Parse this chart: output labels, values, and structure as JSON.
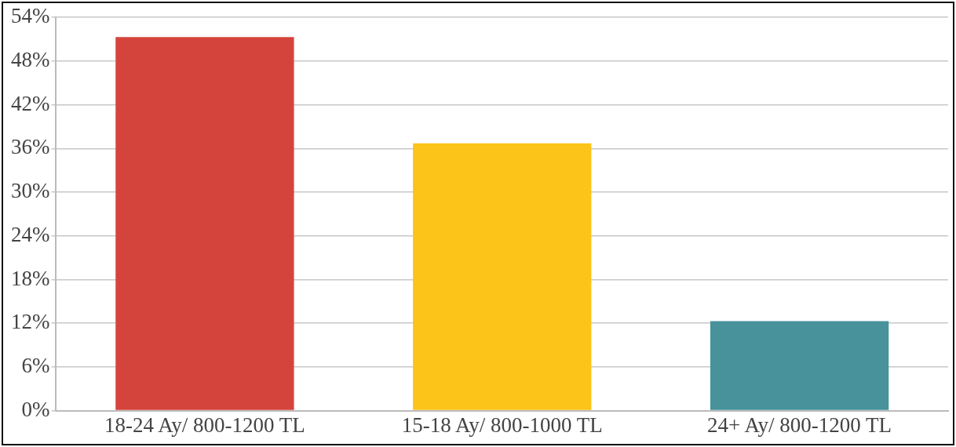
{
  "chart_data": {
    "type": "bar",
    "categories": [
      "18-24 Ay/ 800-1200 TL",
      "15-18 Ay/ 800-1000 TL",
      "24+ Ay/ 800-1200 TL"
    ],
    "values": [
      51.3,
      36.7,
      12.3
    ],
    "colors": [
      "#d5443c",
      "#fcc318",
      "#47929b"
    ],
    "ylim": [
      0,
      54
    ],
    "yticks": [
      {
        "value": 0,
        "label": "0%"
      },
      {
        "value": 6,
        "label": "6%"
      },
      {
        "value": 12,
        "label": "12%"
      },
      {
        "value": 18,
        "label": "18%"
      },
      {
        "value": 24,
        "label": "24%"
      },
      {
        "value": 30,
        "label": "30%"
      },
      {
        "value": 36,
        "label": "36%"
      },
      {
        "value": 42,
        "label": "42%"
      },
      {
        "value": 48,
        "label": "48%"
      },
      {
        "value": 54,
        "label": "54%"
      }
    ],
    "grid": "y"
  }
}
